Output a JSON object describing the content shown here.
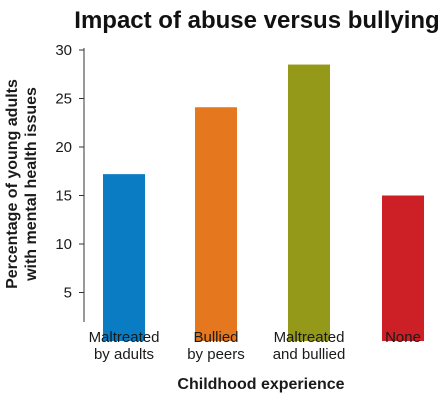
{
  "chart_data": {
    "type": "bar",
    "title": "Impact of abuse versus bullying",
    "categories": [
      [
        "Maltreated",
        "by adults"
      ],
      [
        "Bullied",
        "by peers"
      ],
      [
        "Maltreated",
        "and bullied"
      ],
      [
        "None"
      ]
    ],
    "values": [
      17.2,
      24.1,
      28.5,
      15.0
    ],
    "colors": [
      "#0a7cc4",
      "#e5781e",
      "#95991a",
      "#cc1f26"
    ],
    "xlabel": "Childhood experience",
    "ylabel": [
      "Percentage of young adults",
      "with mental health issues"
    ],
    "yticks": [
      5,
      10,
      15,
      20,
      25,
      30
    ],
    "ylim": [
      0,
      30
    ],
    "grid": false,
    "legend": "none"
  }
}
